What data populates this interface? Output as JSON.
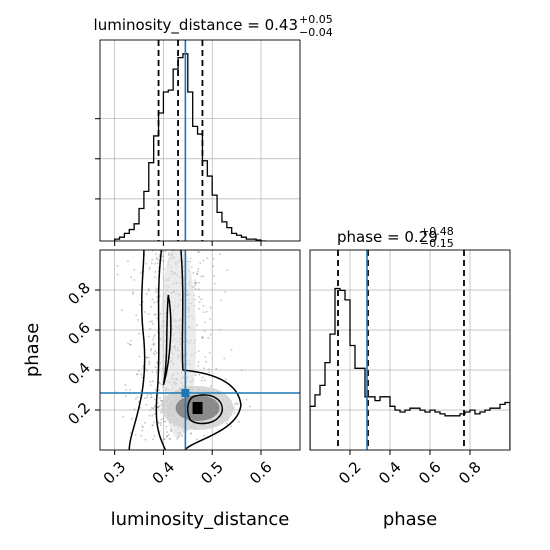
{
  "chart_data": {
    "type": "corner",
    "parameters": [
      "luminosity_distance",
      "phase"
    ],
    "truth": {
      "luminosity_distance": 0.445,
      "phase": 0.285
    },
    "colors": {
      "truth": "#1f77b4",
      "line": "#000000",
      "grid": "#b0b0b0",
      "scatter": "#7f7f7f"
    },
    "grid": true,
    "panels": {
      "luminosity_distance_hist": {
        "title_base": "luminosity_distance = 0.43",
        "title_sup": "+0.05",
        "title_sub": "−0.04",
        "xlim": [
          0.27,
          0.68
        ],
        "ymax": 1.0,
        "quantiles": [
          0.39,
          0.43,
          0.48
        ],
        "bin_edges": [
          0.3,
          0.31,
          0.32,
          0.33,
          0.34,
          0.35,
          0.36,
          0.37,
          0.38,
          0.39,
          0.4,
          0.41,
          0.42,
          0.43,
          0.44,
          0.45,
          0.46,
          0.47,
          0.48,
          0.49,
          0.5,
          0.51,
          0.52,
          0.53,
          0.54,
          0.55,
          0.56,
          0.57,
          0.58,
          0.59,
          0.6,
          0.61
        ],
        "counts": [
          0.01,
          0.02,
          0.04,
          0.06,
          0.09,
          0.17,
          0.26,
          0.41,
          0.55,
          0.67,
          0.78,
          0.79,
          0.9,
          0.96,
          0.98,
          0.78,
          0.6,
          0.56,
          0.42,
          0.34,
          0.24,
          0.15,
          0.1,
          0.07,
          0.04,
          0.03,
          0.02,
          0.01,
          0.01,
          0.005,
          0.0
        ]
      },
      "phase_hist": {
        "title_base": "phase = 0.29",
        "title_sup": "+0.48",
        "title_sub": "−0.15",
        "xlim": [
          0.0,
          1.0
        ],
        "ymax": 1.0,
        "quantiles": [
          0.14,
          0.29,
          0.77
        ],
        "bin_edges": [
          0.0,
          0.025,
          0.05,
          0.075,
          0.1,
          0.125,
          0.15,
          0.175,
          0.2,
          0.225,
          0.25,
          0.275,
          0.3,
          0.325,
          0.35,
          0.375,
          0.4,
          0.425,
          0.45,
          0.475,
          0.5,
          0.525,
          0.55,
          0.575,
          0.6,
          0.625,
          0.65,
          0.675,
          0.7,
          0.725,
          0.75,
          0.775,
          0.8,
          0.825,
          0.85,
          0.875,
          0.9,
          0.925,
          0.95,
          0.975,
          1.0
        ],
        "counts": [
          0.23,
          0.29,
          0.34,
          0.46,
          0.61,
          0.85,
          0.84,
          0.79,
          0.55,
          0.43,
          0.43,
          0.28,
          0.28,
          0.26,
          0.28,
          0.28,
          0.23,
          0.21,
          0.2,
          0.21,
          0.22,
          0.22,
          0.21,
          0.2,
          0.21,
          0.2,
          0.19,
          0.18,
          0.18,
          0.18,
          0.19,
          0.2,
          0.21,
          0.19,
          0.2,
          0.21,
          0.22,
          0.22,
          0.24,
          0.25
        ]
      },
      "joint": {
        "xlim": [
          0.27,
          0.68
        ],
        "ylim": [
          0.0,
          1.0
        ],
        "peak": {
          "luminosity_distance": 0.47,
          "phase": 0.21
        }
      }
    },
    "xticks": {
      "luminosity_distance": [
        "0.3",
        "0.4",
        "0.5",
        "0.6"
      ],
      "phase": [
        "0.2",
        "0.4",
        "0.6",
        "0.8"
      ]
    },
    "yticks": {
      "phase": [
        "0.2",
        "0.4",
        "0.6",
        "0.8"
      ]
    },
    "xlabels": [
      "luminosity_distance",
      "phase"
    ],
    "ylabel": "phase"
  }
}
